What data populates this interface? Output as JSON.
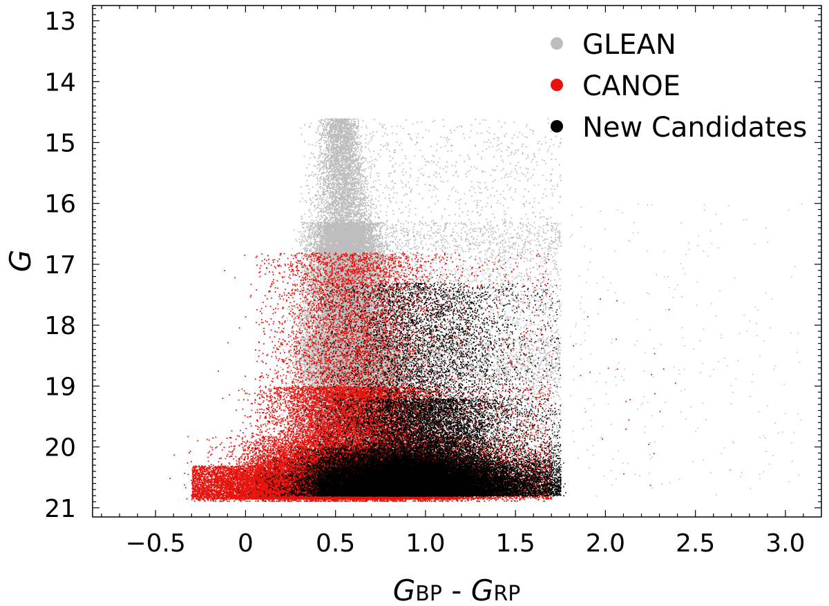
{
  "chart_data": {
    "type": "scatter",
    "title": "",
    "xlabel": {
      "main_a": "G",
      "sub_a": "BP",
      "sep": " - ",
      "main_b": "G",
      "sub_b": "RP"
    },
    "ylabel": "G",
    "xlim": [
      -0.85,
      3.2
    ],
    "ylim": [
      21.15,
      12.75
    ],
    "y_inverted": true,
    "grid": false,
    "legend_position": "top-right",
    "x_ticks": [
      {
        "value": -0.5,
        "label": "−0.5"
      },
      {
        "value": 0,
        "label": "0"
      },
      {
        "value": 0.5,
        "label": "0.5"
      },
      {
        "value": 1.0,
        "label": "1.0"
      },
      {
        "value": 1.5,
        "label": "1.5"
      },
      {
        "value": 2.0,
        "label": "2.0"
      },
      {
        "value": 2.5,
        "label": "2.5"
      },
      {
        "value": 3.0,
        "label": "3.0"
      }
    ],
    "y_ticks": [
      {
        "value": 13,
        "label": "13"
      },
      {
        "value": 14,
        "label": "14"
      },
      {
        "value": 15,
        "label": "15"
      },
      {
        "value": 16,
        "label": "16"
      },
      {
        "value": 17,
        "label": "17"
      },
      {
        "value": 18,
        "label": "18"
      },
      {
        "value": 19,
        "label": "19"
      },
      {
        "value": 20,
        "label": "20"
      },
      {
        "value": 21,
        "label": "21"
      }
    ],
    "series": [
      {
        "name": "GLEAN",
        "color": "#bdbdbd",
        "density_model": {
          "x_range": [
            0.15,
            1.8
          ],
          "y_range": [
            14.4,
            21.0
          ],
          "peak": {
            "x": 0.55,
            "y": 17.5
          }
        }
      },
      {
        "name": "CANOE",
        "color": "#e8130d",
        "density_model": {
          "x_range": [
            -0.3,
            1.75
          ],
          "y_range": [
            16.5,
            20.9
          ],
          "peak": {
            "x": 0.55,
            "y": 20.1
          }
        }
      },
      {
        "name": "New Candidates",
        "color": "#000000",
        "density_model": {
          "x_range": [
            0.3,
            1.78
          ],
          "y_range": [
            17.2,
            20.9
          ],
          "peak": {
            "x": 0.9,
            "y": 20.4
          }
        }
      }
    ]
  }
}
